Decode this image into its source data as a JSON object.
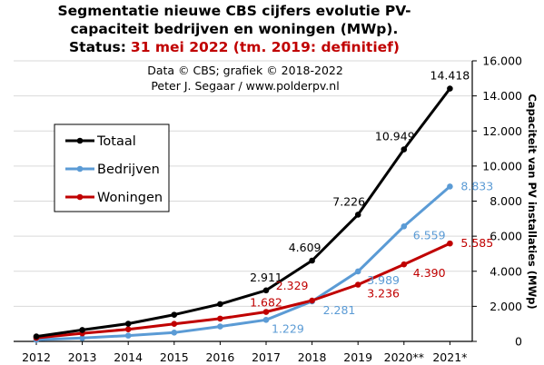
{
  "chart_data": {
    "type": "line",
    "title_line1": "Segmentatie nieuwe CBS cijfers evolutie PV-",
    "title_line2": "capaciteit bedrijven en woningen (MWp).",
    "title_status_prefix": "Status:",
    "title_status_date": "31 mei 2022 (tm. 2019: definitief)",
    "credits_line1": "Data © CBS; grafiek © 2018-2022",
    "credits_line2": "Peter J. Segaar / www.polderpv.nl",
    "ylabel": "Capaciteit van PV installaties (MWp)",
    "categories": [
      "2012",
      "2013",
      "2014",
      "2015",
      "2016",
      "2017",
      "2018",
      "2019",
      "2020**",
      "2021*"
    ],
    "ylim": [
      0,
      16000
    ],
    "yticks": [
      0,
      2000,
      4000,
      6000,
      8000,
      10000,
      12000,
      14000,
      16000
    ],
    "ytick_labels": [
      "0",
      "2.000",
      "4.000",
      "6.000",
      "8.000",
      "10.000",
      "12.000",
      "14.000",
      "16.000"
    ],
    "axis_position": "right",
    "grid": true,
    "legend_position": "left",
    "series": [
      {
        "name": "Totaal",
        "color": "#000000",
        "values": [
          280,
          650,
          1010,
          1520,
          2130,
          2911,
          4609,
          7226,
          10949,
          14418
        ],
        "labels": [
          null,
          null,
          null,
          null,
          null,
          "2.911",
          "4.609",
          "7.226",
          "10.949",
          "14.418"
        ]
      },
      {
        "name": "Bedrijven",
        "color": "#5b9bd5",
        "values": [
          90,
          190,
          330,
          500,
          850,
          1229,
          2281,
          3989,
          6559,
          8833
        ],
        "labels": [
          null,
          null,
          null,
          null,
          null,
          "1.229",
          "2.281",
          "3.989",
          "6.559",
          "8.833"
        ]
      },
      {
        "name": "Woningen",
        "color": "#c00000",
        "values": [
          200,
          460,
          690,
          1000,
          1300,
          1682,
          2329,
          3236,
          4390,
          5585
        ],
        "labels": [
          null,
          null,
          null,
          null,
          null,
          "1.682",
          "2.329",
          "3.236",
          "4.390",
          "5.585"
        ]
      }
    ]
  }
}
